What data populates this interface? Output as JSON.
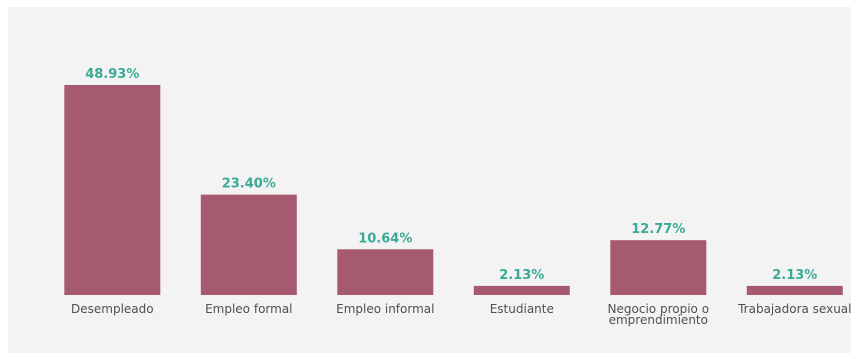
{
  "chart_data": {
    "type": "bar",
    "title": "",
    "xlabel": "",
    "ylabel": "",
    "categories": [
      "Desempleado",
      "Empleo formal",
      "Empleo informal",
      "Estudiante",
      "Negocio propio o emprendimiento",
      "Trabajadora sexual"
    ],
    "category_lines": [
      [
        "Desempleado"
      ],
      [
        "Empleo formal"
      ],
      [
        "Empleo informal"
      ],
      [
        "Estudiante"
      ],
      [
        "Negocio propio o",
        "emprendimiento"
      ],
      [
        "Trabajadora sexual"
      ]
    ],
    "values": [
      48.93,
      23.4,
      10.64,
      2.13,
      12.77,
      2.13
    ],
    "value_labels": [
      "48.93%",
      "23.40%",
      "10.64%",
      "2.13%",
      "12.77%",
      "2.13%"
    ],
    "unit": "%",
    "ylim": [
      0,
      50
    ],
    "grid": false,
    "legend": "none",
    "colors": {
      "bar": "#a65a70",
      "value_label": "#3aaa96",
      "category_label": "#505050",
      "background": "#f3f3f3"
    }
  }
}
